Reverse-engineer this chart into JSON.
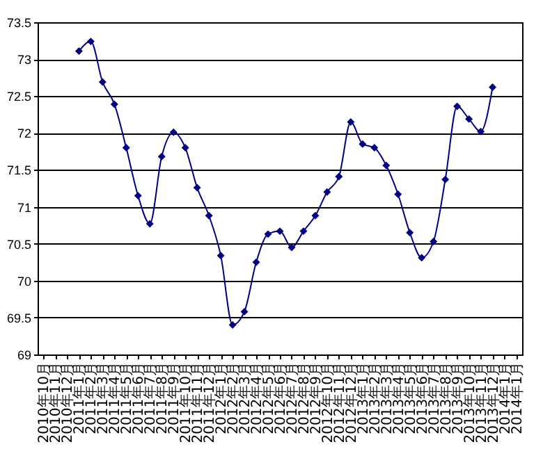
{
  "chart_data": {
    "type": "line",
    "categories": [
      "2010年10月",
      "2010年11月",
      "2010年12月",
      "2011年1月",
      "2011年2月",
      "2011年3月",
      "2011年4月",
      "2011年5月",
      "2011年6月",
      "2011年7月",
      "2011年8月",
      "2011年9月",
      "2011年10月",
      "2011年11月",
      "2011年12月",
      "2012年1月",
      "2012年2月",
      "2012年3月",
      "2012年4月",
      "2012年5月",
      "2012年6月",
      "2012年7月",
      "2012年8月",
      "2012年9月",
      "2012年10月",
      "2012年11月",
      "2012年12月",
      "2013年1月",
      "2013年2月",
      "2013年3月",
      "2013年4月",
      "2013年5月",
      "2013年6月",
      "2013年7月",
      "2013年8月",
      "2013年9月",
      "2013年10月",
      "2013年11月",
      "2013年12月",
      "2014年1月",
      "2014年1月"
    ],
    "series": [
      {
        "color": "#000080",
        "values": [
          null,
          null,
          null,
          73.11,
          73.24,
          72.69,
          72.39,
          71.8,
          71.15,
          70.77,
          71.68,
          72.01,
          71.8,
          71.26,
          70.88,
          70.34,
          69.4,
          69.58,
          70.25,
          70.63,
          70.67,
          70.45,
          70.67,
          70.88,
          71.2,
          71.41,
          72.15,
          71.85,
          71.8,
          71.56,
          71.17,
          70.65,
          70.31,
          70.53,
          71.37,
          72.36,
          72.19,
          72.02,
          72.62,
          null,
          null
        ]
      }
    ],
    "ylim": [
      69,
      73.5
    ],
    "yticks": [
      69,
      69.5,
      70,
      70.5,
      71,
      71.5,
      72,
      72.5,
      73,
      73.5
    ],
    "grid": "y",
    "marker": "diamond",
    "line_style": "solid"
  }
}
